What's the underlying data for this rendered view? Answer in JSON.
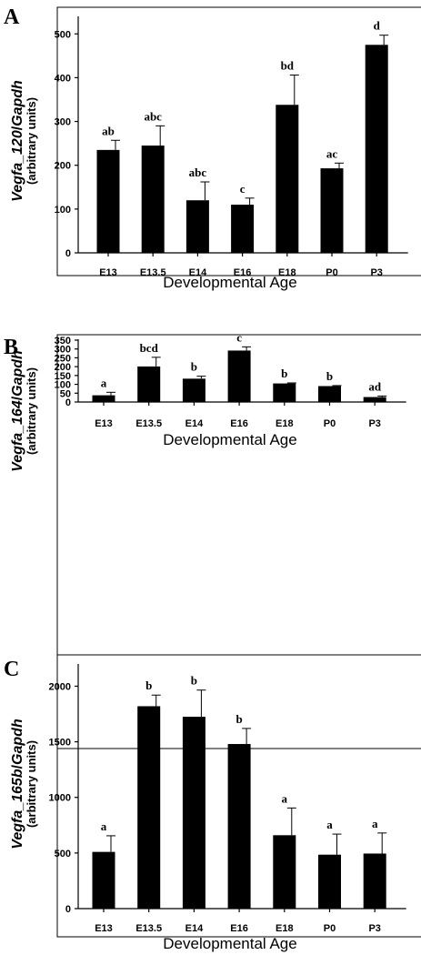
{
  "chart_data": [
    {
      "type": "bar",
      "panel_label": "A",
      "categories": [
        "E13",
        "E13.5",
        "E14",
        "E16",
        "E18",
        "P0",
        "P3"
      ],
      "values": [
        235,
        245,
        120,
        110,
        338,
        193,
        475
      ],
      "errors": [
        22,
        45,
        42,
        15,
        68,
        12,
        22
      ],
      "significance": [
        "ab",
        "abc",
        "abc",
        "c",
        "bd",
        "ac",
        "d"
      ],
      "yticks": [
        0,
        100,
        200,
        300,
        400,
        500
      ],
      "ylim": [
        0,
        540
      ],
      "ylabel_gene": "Vegfa_120",
      "ylabel_ref": "Gapdh",
      "ylabel_units": "(arbitrary units)",
      "xlabel": "Developmental Age"
    },
    {
      "type": "bar",
      "panel_label": "B",
      "categories": [
        "E13",
        "E13.5",
        "E14",
        "E16",
        "E18",
        "P0",
        "P3"
      ],
      "values": [
        38,
        201,
        132,
        291,
        105,
        90,
        28
      ],
      "errors": [
        17,
        52,
        14,
        21,
        3,
        3,
        6
      ],
      "significance": [
        "a",
        "bcd",
        "b",
        "c",
        "b",
        "b",
        "ad"
      ],
      "yticks": [
        0,
        50,
        100,
        150,
        200,
        250,
        300,
        350
      ],
      "ylim": [
        0,
        355
      ],
      "ylabel_gene": "Vegfa_164",
      "ylabel_ref": "Gapdh",
      "ylabel_units": "(arbitrary units)",
      "xlabel": "Developmental Age"
    },
    {
      "type": "bar",
      "panel_label": "C",
      "categories": [
        "E13",
        "E13.5",
        "E14",
        "E16",
        "E18",
        "P0",
        "P3"
      ],
      "values": [
        510,
        1820,
        1725,
        1480,
        660,
        485,
        495
      ],
      "errors": [
        145,
        100,
        240,
        140,
        245,
        185,
        185
      ],
      "significance": [
        "a",
        "b",
        "b",
        "b",
        "a",
        "a",
        "a"
      ],
      "yticks": [
        0,
        500,
        1000,
        1500,
        2000
      ],
      "ylim": [
        0,
        2200
      ],
      "ylabel_gene": "Vegfa_165b",
      "ylabel_ref": "Gapdh",
      "ylabel_units": "(arbitrary units)",
      "xlabel": "Developmental Age"
    }
  ]
}
